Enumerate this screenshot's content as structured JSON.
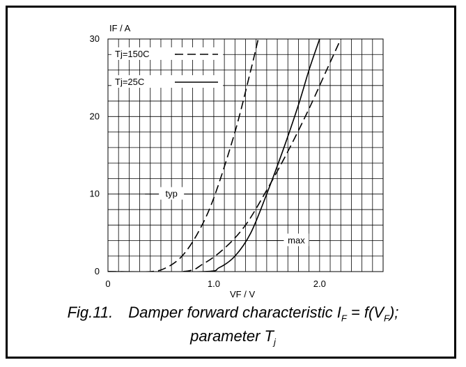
{
  "chart_data": {
    "type": "line",
    "x_axis": {
      "label": "VF / V",
      "ticks": [
        0,
        1.0,
        2.0
      ],
      "tick_labels": [
        "0",
        "1.0",
        "2.0"
      ],
      "range": [
        0,
        2.6
      ]
    },
    "y_axis": {
      "label": "IF / A",
      "ticks": [
        0,
        10,
        20,
        30
      ],
      "tick_labels": [
        "0",
        "10",
        "20",
        "30"
      ],
      "range": [
        0,
        30
      ]
    },
    "grid": true,
    "legend": {
      "placement": "top-left",
      "entries": [
        {
          "label": "Tj=150C",
          "style": "dashed"
        },
        {
          "label": "Tj=25C",
          "style": "solid"
        }
      ]
    },
    "annotations": [
      {
        "text": "typ",
        "series_group": "typ"
      },
      {
        "text": "max",
        "series_group": "max"
      }
    ],
    "series": [
      {
        "name": "Tj=150C",
        "group": "typ",
        "style": "dashed",
        "x": [
          0.0,
          0.4,
          0.55,
          0.7,
          0.85,
          1.0,
          1.2,
          1.35,
          1.42
        ],
        "y": [
          0.0,
          0.0,
          0.5,
          2.0,
          5.0,
          9.5,
          18.0,
          26.0,
          30.0
        ]
      },
      {
        "name": "Tj=150C",
        "group": "max",
        "style": "dashed",
        "x": [
          0.0,
          0.7,
          0.9,
          1.1,
          1.3,
          1.5,
          1.7,
          1.9,
          2.05,
          2.2
        ],
        "y": [
          0.0,
          0.0,
          1.0,
          3.0,
          6.0,
          10.5,
          15.5,
          21.0,
          25.5,
          30.0
        ]
      },
      {
        "name": "Tj=25C",
        "group": "max",
        "style": "solid",
        "x": [
          0.0,
          0.9,
          1.05,
          1.2,
          1.35,
          1.5,
          1.65,
          1.8,
          1.9,
          2.0
        ],
        "y": [
          0.0,
          0.0,
          0.5,
          2.0,
          5.0,
          10.0,
          15.5,
          21.5,
          26.0,
          30.0
        ]
      }
    ]
  },
  "caption": {
    "fig_label": "Fig.11.",
    "line1": "Damper forward characteristic I",
    "line1_sub1": "F",
    "line1_mid": " = f(V",
    "line1_sub2": "F",
    "line1_end": ");",
    "line2": "parameter T",
    "line2_sub": "j"
  }
}
